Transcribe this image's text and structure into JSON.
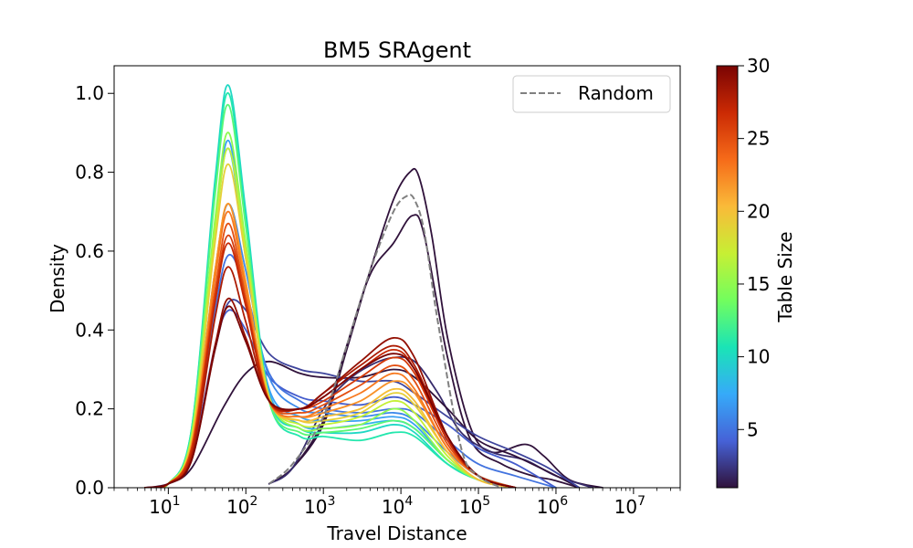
{
  "chart_data": {
    "type": "line",
    "title": "BM5 SRAgent",
    "xlabel": "Travel Distance",
    "ylabel": "Density",
    "x_scale": "log",
    "xlim": [
      2,
      40000000
    ],
    "ylim": [
      0,
      1.07
    ],
    "x_ticks": [
      10,
      100,
      1000,
      10000,
      100000,
      1000000,
      10000000
    ],
    "x_tick_labels": [
      "10",
      "10",
      "10",
      "10",
      "10",
      "10",
      "10"
    ],
    "x_tick_exponents": [
      "1",
      "2",
      "3",
      "4",
      "5",
      "6",
      "7"
    ],
    "y_ticks": [
      0.0,
      0.2,
      0.4,
      0.6,
      0.8,
      1.0
    ],
    "y_tick_labels": [
      "0.0",
      "0.2",
      "0.4",
      "0.6",
      "0.8",
      "1.0"
    ],
    "grid": false,
    "legend": {
      "position": "top-right",
      "entries": [
        {
          "label": "Random",
          "style": "dashed",
          "color": "#808080"
        }
      ]
    },
    "colorbar": {
      "label": "Table Size",
      "min": 1,
      "max": 30,
      "ticks": [
        5,
        10,
        15,
        20,
        25,
        30
      ],
      "tick_labels": [
        "5",
        "10",
        "15",
        "20",
        "25",
        "30"
      ],
      "colormap": "turbo",
      "colors": [
        "#30123b",
        "#4662d7",
        "#36aaf9",
        "#1ae4b6",
        "#72fe5e",
        "#c7ef34",
        "#faba39",
        "#f66b19",
        "#cb2a04",
        "#7a0403"
      ]
    },
    "random_series": {
      "name": "Random",
      "x": [
        200,
        400,
        1000,
        2000,
        4000,
        8000,
        12000,
        15000,
        20000,
        30000,
        60000,
        100000,
        200000
      ],
      "y": [
        0.01,
        0.06,
        0.18,
        0.36,
        0.55,
        0.7,
        0.74,
        0.73,
        0.65,
        0.42,
        0.1,
        0.03,
        0.0
      ]
    },
    "series": [
      {
        "table_size": 1,
        "x": [
          200,
          400,
          1000,
          2000,
          4000,
          8000,
          13000,
          17000,
          25000,
          40000,
          80000,
          150000,
          400000,
          700000,
          1500000,
          4000000
        ],
        "y": [
          0.01,
          0.05,
          0.16,
          0.35,
          0.55,
          0.73,
          0.8,
          0.79,
          0.64,
          0.38,
          0.15,
          0.09,
          0.11,
          0.08,
          0.02,
          0.0
        ]
      },
      {
        "table_size": 1,
        "x": [
          200,
          400,
          1000,
          2000,
          4000,
          8000,
          14000,
          20000,
          40000,
          80000,
          200000,
          500000,
          900000,
          2000000
        ],
        "y": [
          0.01,
          0.05,
          0.17,
          0.36,
          0.54,
          0.62,
          0.69,
          0.64,
          0.33,
          0.12,
          0.06,
          0.03,
          0.02,
          0.0
        ]
      },
      {
        "table_size": 2,
        "x": [
          200,
          400,
          1000,
          2000,
          4000,
          8000,
          15000,
          30000,
          60000,
          150000,
          400000,
          1000000,
          3000000
        ],
        "y": [
          0.01,
          0.05,
          0.2,
          0.27,
          0.31,
          0.33,
          0.32,
          0.24,
          0.14,
          0.09,
          0.07,
          0.03,
          0.0
        ]
      },
      {
        "table_size": 1,
        "x": [
          5,
          10,
          20,
          50,
          100,
          200,
          500,
          1000,
          3000,
          8000,
          15000,
          40000,
          100000,
          300000,
          800000,
          2000000
        ],
        "y": [
          0.0,
          0.01,
          0.05,
          0.2,
          0.29,
          0.32,
          0.29,
          0.28,
          0.28,
          0.3,
          0.28,
          0.2,
          0.12,
          0.08,
          0.04,
          0.0
        ]
      },
      {
        "table_size": 3,
        "x": [
          5,
          10,
          20,
          40,
          60,
          100,
          200,
          500,
          1000,
          3000,
          8000,
          15000,
          40000,
          100000,
          300000,
          800000,
          2000000
        ],
        "y": [
          0.0,
          0.01,
          0.09,
          0.35,
          0.47,
          0.45,
          0.34,
          0.3,
          0.29,
          0.27,
          0.27,
          0.24,
          0.18,
          0.13,
          0.09,
          0.05,
          0.0
        ]
      },
      {
        "table_size": 4,
        "x": [
          5,
          10,
          20,
          40,
          60,
          100,
          200,
          500,
          1000,
          3000,
          8000,
          15000,
          40000,
          100000,
          300000,
          1000000
        ],
        "y": [
          0.0,
          0.01,
          0.08,
          0.36,
          0.45,
          0.4,
          0.28,
          0.23,
          0.22,
          0.21,
          0.23,
          0.21,
          0.16,
          0.1,
          0.06,
          0.0
        ]
      },
      {
        "table_size": 5,
        "x": [
          5,
          10,
          20,
          40,
          60,
          100,
          200,
          500,
          1000,
          3000,
          8000,
          15000,
          40000,
          100000,
          300000,
          1000000
        ],
        "y": [
          0.0,
          0.01,
          0.1,
          0.45,
          0.59,
          0.5,
          0.29,
          0.22,
          0.2,
          0.19,
          0.2,
          0.19,
          0.12,
          0.06,
          0.03,
          0.0
        ]
      },
      {
        "table_size": 6,
        "x": [
          5,
          10,
          20,
          40,
          60,
          100,
          200,
          500,
          1000,
          3000,
          8000,
          15000,
          40000,
          100000,
          300000
        ],
        "y": [
          0.0,
          0.01,
          0.12,
          0.55,
          0.72,
          0.55,
          0.28,
          0.2,
          0.19,
          0.18,
          0.19,
          0.17,
          0.09,
          0.03,
          0.0
        ]
      },
      {
        "table_size": 7,
        "x": [
          5,
          10,
          20,
          40,
          60,
          100,
          200,
          500,
          1000,
          3000,
          8000,
          15000,
          40000,
          100000,
          300000
        ],
        "y": [
          0.0,
          0.01,
          0.13,
          0.66,
          0.88,
          0.6,
          0.25,
          0.18,
          0.17,
          0.17,
          0.18,
          0.16,
          0.07,
          0.02,
          0.0
        ]
      },
      {
        "table_size": 8,
        "x": [
          5,
          10,
          20,
          40,
          60,
          100,
          200,
          500,
          1000,
          3000,
          8000,
          15000,
          40000,
          100000,
          300000
        ],
        "y": [
          0.0,
          0.01,
          0.13,
          0.65,
          0.86,
          0.58,
          0.24,
          0.16,
          0.15,
          0.16,
          0.17,
          0.15,
          0.07,
          0.02,
          0.0
        ]
      },
      {
        "table_size": 10,
        "x": [
          5,
          10,
          20,
          40,
          60,
          100,
          200,
          500,
          1000,
          3000,
          8000,
          15000,
          40000,
          100000,
          300000
        ],
        "y": [
          0.0,
          0.01,
          0.15,
          0.78,
          1.02,
          0.7,
          0.23,
          0.15,
          0.14,
          0.14,
          0.16,
          0.14,
          0.06,
          0.02,
          0.0
        ]
      },
      {
        "table_size": 11,
        "x": [
          5,
          10,
          20,
          40,
          60,
          100,
          200,
          500,
          1000,
          3000,
          8000,
          15000,
          40000,
          100000,
          300000
        ],
        "y": [
          0.0,
          0.01,
          0.15,
          0.76,
          1.0,
          0.68,
          0.22,
          0.13,
          0.13,
          0.12,
          0.14,
          0.13,
          0.06,
          0.02,
          0.0
        ]
      },
      {
        "table_size": 13,
        "x": [
          5,
          10,
          20,
          40,
          60,
          100,
          200,
          500,
          1000,
          3000,
          8000,
          15000,
          40000,
          100000,
          300000
        ],
        "y": [
          0.0,
          0.01,
          0.14,
          0.74,
          0.97,
          0.66,
          0.22,
          0.14,
          0.14,
          0.15,
          0.17,
          0.15,
          0.07,
          0.02,
          0.0
        ]
      },
      {
        "table_size": 15,
        "x": [
          5,
          10,
          20,
          40,
          60,
          100,
          200,
          500,
          1000,
          3000,
          8000,
          15000,
          40000,
          100000,
          300000
        ],
        "y": [
          0.0,
          0.01,
          0.13,
          0.68,
          0.9,
          0.62,
          0.23,
          0.15,
          0.15,
          0.16,
          0.2,
          0.17,
          0.07,
          0.02,
          0.0
        ]
      },
      {
        "table_size": 17,
        "x": [
          5,
          10,
          20,
          40,
          60,
          100,
          200,
          500,
          1000,
          3000,
          8000,
          15000,
          40000,
          100000,
          300000
        ],
        "y": [
          0.0,
          0.01,
          0.13,
          0.65,
          0.86,
          0.6,
          0.23,
          0.16,
          0.16,
          0.18,
          0.22,
          0.19,
          0.08,
          0.02,
          0.0
        ]
      },
      {
        "table_size": 19,
        "x": [
          5,
          10,
          20,
          40,
          60,
          100,
          200,
          500,
          1000,
          3000,
          8000,
          15000,
          40000,
          100000,
          300000
        ],
        "y": [
          0.0,
          0.01,
          0.12,
          0.62,
          0.82,
          0.58,
          0.23,
          0.17,
          0.17,
          0.19,
          0.24,
          0.21,
          0.09,
          0.02,
          0.0
        ]
      },
      {
        "table_size": 20,
        "x": [
          5,
          10,
          20,
          40,
          60,
          100,
          200,
          500,
          1000,
          3000,
          8000,
          15000,
          40000,
          100000,
          300000
        ],
        "y": [
          0.0,
          0.01,
          0.11,
          0.55,
          0.72,
          0.52,
          0.22,
          0.17,
          0.18,
          0.2,
          0.25,
          0.22,
          0.09,
          0.02,
          0.0
        ]
      },
      {
        "table_size": 22,
        "x": [
          5,
          10,
          20,
          40,
          60,
          100,
          200,
          500,
          1000,
          3000,
          8000,
          15000,
          40000,
          100000,
          300000
        ],
        "y": [
          0.0,
          0.01,
          0.11,
          0.55,
          0.72,
          0.52,
          0.22,
          0.18,
          0.19,
          0.22,
          0.27,
          0.24,
          0.1,
          0.03,
          0.0
        ]
      },
      {
        "table_size": 23,
        "x": [
          5,
          10,
          20,
          40,
          60,
          100,
          200,
          500,
          1000,
          3000,
          8000,
          15000,
          40000,
          100000,
          300000
        ],
        "y": [
          0.0,
          0.01,
          0.1,
          0.53,
          0.7,
          0.5,
          0.22,
          0.18,
          0.2,
          0.24,
          0.29,
          0.25,
          0.1,
          0.03,
          0.0
        ]
      },
      {
        "table_size": 25,
        "x": [
          5,
          10,
          20,
          40,
          60,
          100,
          200,
          500,
          1000,
          3000,
          8000,
          15000,
          40000,
          100000,
          300000
        ],
        "y": [
          0.0,
          0.01,
          0.1,
          0.5,
          0.67,
          0.48,
          0.22,
          0.19,
          0.21,
          0.26,
          0.31,
          0.27,
          0.11,
          0.03,
          0.0
        ]
      },
      {
        "table_size": 26,
        "x": [
          5,
          10,
          20,
          40,
          60,
          100,
          200,
          500,
          1000,
          3000,
          8000,
          15000,
          40000,
          100000,
          300000
        ],
        "y": [
          0.0,
          0.01,
          0.1,
          0.48,
          0.64,
          0.47,
          0.22,
          0.2,
          0.22,
          0.28,
          0.33,
          0.29,
          0.12,
          0.03,
          0.0
        ]
      },
      {
        "table_size": 27,
        "x": [
          5,
          10,
          20,
          40,
          60,
          100,
          200,
          500,
          1000,
          3000,
          8000,
          15000,
          40000,
          100000,
          300000
        ],
        "y": [
          0.0,
          0.01,
          0.09,
          0.47,
          0.62,
          0.46,
          0.22,
          0.2,
          0.23,
          0.3,
          0.35,
          0.3,
          0.12,
          0.03,
          0.0
        ]
      },
      {
        "table_size": 28,
        "x": [
          5,
          10,
          20,
          40,
          60,
          100,
          200,
          500,
          1000,
          3000,
          8000,
          15000,
          40000,
          100000,
          300000
        ],
        "y": [
          0.0,
          0.01,
          0.08,
          0.43,
          0.56,
          0.42,
          0.22,
          0.2,
          0.24,
          0.31,
          0.36,
          0.31,
          0.13,
          0.03,
          0.0
        ]
      },
      {
        "table_size": 29,
        "x": [
          5,
          10,
          20,
          40,
          60,
          100,
          200,
          500,
          1000,
          3000,
          8000,
          15000,
          40000,
          100000,
          300000
        ],
        "y": [
          0.0,
          0.01,
          0.07,
          0.36,
          0.48,
          0.38,
          0.22,
          0.2,
          0.24,
          0.32,
          0.38,
          0.33,
          0.13,
          0.03,
          0.0
        ]
      },
      {
        "table_size": 30,
        "x": [
          5,
          10,
          20,
          40,
          60,
          100,
          200,
          500,
          1000,
          3000,
          8000,
          15000,
          40000,
          100000,
          300000
        ],
        "y": [
          0.0,
          0.01,
          0.07,
          0.35,
          0.46,
          0.37,
          0.22,
          0.2,
          0.23,
          0.3,
          0.34,
          0.3,
          0.13,
          0.03,
          0.0
        ]
      }
    ]
  }
}
